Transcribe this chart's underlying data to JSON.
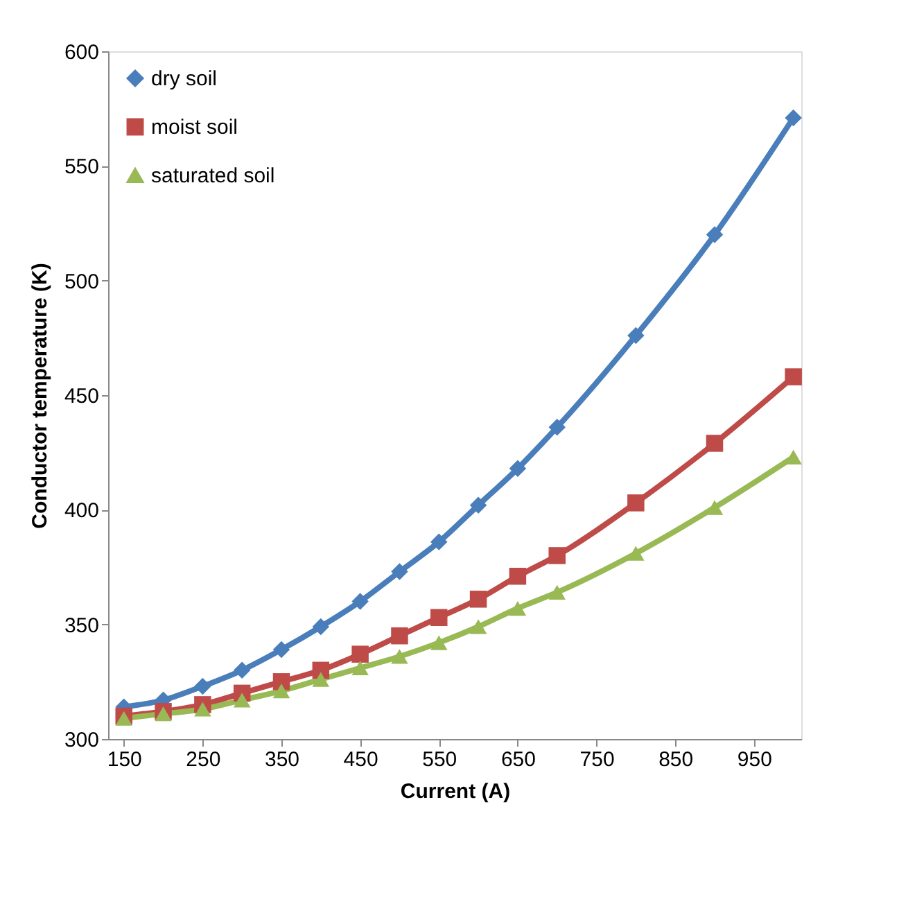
{
  "chart_data": {
    "type": "line",
    "xlabel": "Current (A)",
    "ylabel": "Conductor temperature (K)",
    "x": [
      150,
      200,
      250,
      300,
      350,
      400,
      450,
      500,
      550,
      600,
      650,
      700,
      800,
      900,
      1000
    ],
    "series": [
      {
        "name": "dry soil",
        "color": "#4a7ebb",
        "marker": "diamond",
        "values": [
          314,
          317,
          323,
          330,
          339,
          349,
          360,
          373,
          386,
          402,
          418,
          436,
          476,
          520,
          571
        ]
      },
      {
        "name": "moist soil",
        "color": "#be4b48",
        "marker": "square",
        "values": [
          310,
          312,
          315,
          320,
          325,
          330,
          337,
          345,
          353,
          361,
          371,
          380,
          403,
          429,
          458
        ]
      },
      {
        "name": "saturated soil",
        "color": "#98b954",
        "marker": "triangle",
        "values": [
          309,
          311,
          313,
          317,
          321,
          326,
          331,
          336,
          342,
          349,
          357,
          364,
          381,
          401,
          423
        ]
      }
    ],
    "xlim": [
      130,
      1010
    ],
    "xticks": [
      150,
      250,
      350,
      450,
      550,
      650,
      750,
      850,
      950
    ],
    "ylim": [
      300,
      600
    ],
    "yticks": [
      300,
      350,
      400,
      450,
      500,
      550,
      600
    ],
    "grid": false,
    "legend": "top left",
    "line_style": "solid"
  }
}
